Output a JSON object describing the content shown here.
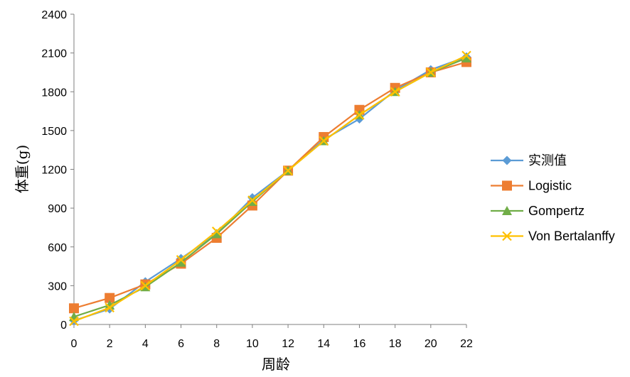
{
  "chart_data": {
    "type": "line",
    "title": "",
    "xlabel": "周龄",
    "ylabel": "体重(g)",
    "x": [
      0,
      2,
      4,
      6,
      8,
      10,
      12,
      14,
      16,
      18,
      20,
      22
    ],
    "xlim": [
      0,
      22
    ],
    "ylim": [
      0,
      2400
    ],
    "x_ticks": [
      "0",
      "2",
      "4",
      "6",
      "8",
      "10",
      "12",
      "14",
      "16",
      "18",
      "20",
      "22"
    ],
    "y_ticks": [
      "0",
      "300",
      "600",
      "900",
      "1200",
      "1500",
      "1800",
      "2100",
      "2400"
    ],
    "grid": false,
    "legend_position": "right",
    "series": [
      {
        "name": "实测值",
        "color": "#5b9bd5",
        "marker": "diamond",
        "values": [
          30,
          120,
          330,
          510,
          700,
          980,
          1190,
          1430,
          1590,
          1810,
          1970,
          2070
        ]
      },
      {
        "name": "Logistic",
        "color": "#ed7d31",
        "marker": "square",
        "values": [
          125,
          205,
          310,
          470,
          670,
          920,
          1190,
          1450,
          1660,
          1830,
          1950,
          2030
        ]
      },
      {
        "name": "Gompertz",
        "color": "#70ad47",
        "marker": "triangle",
        "values": [
          60,
          150,
          290,
          480,
          700,
          950,
          1190,
          1420,
          1620,
          1800,
          1950,
          2060
        ]
      },
      {
        "name": "Von Bertalanffy",
        "color": "#ffc000",
        "marker": "x",
        "values": [
          25,
          130,
          300,
          500,
          720,
          960,
          1190,
          1420,
          1620,
          1800,
          1950,
          2080
        ]
      }
    ]
  }
}
